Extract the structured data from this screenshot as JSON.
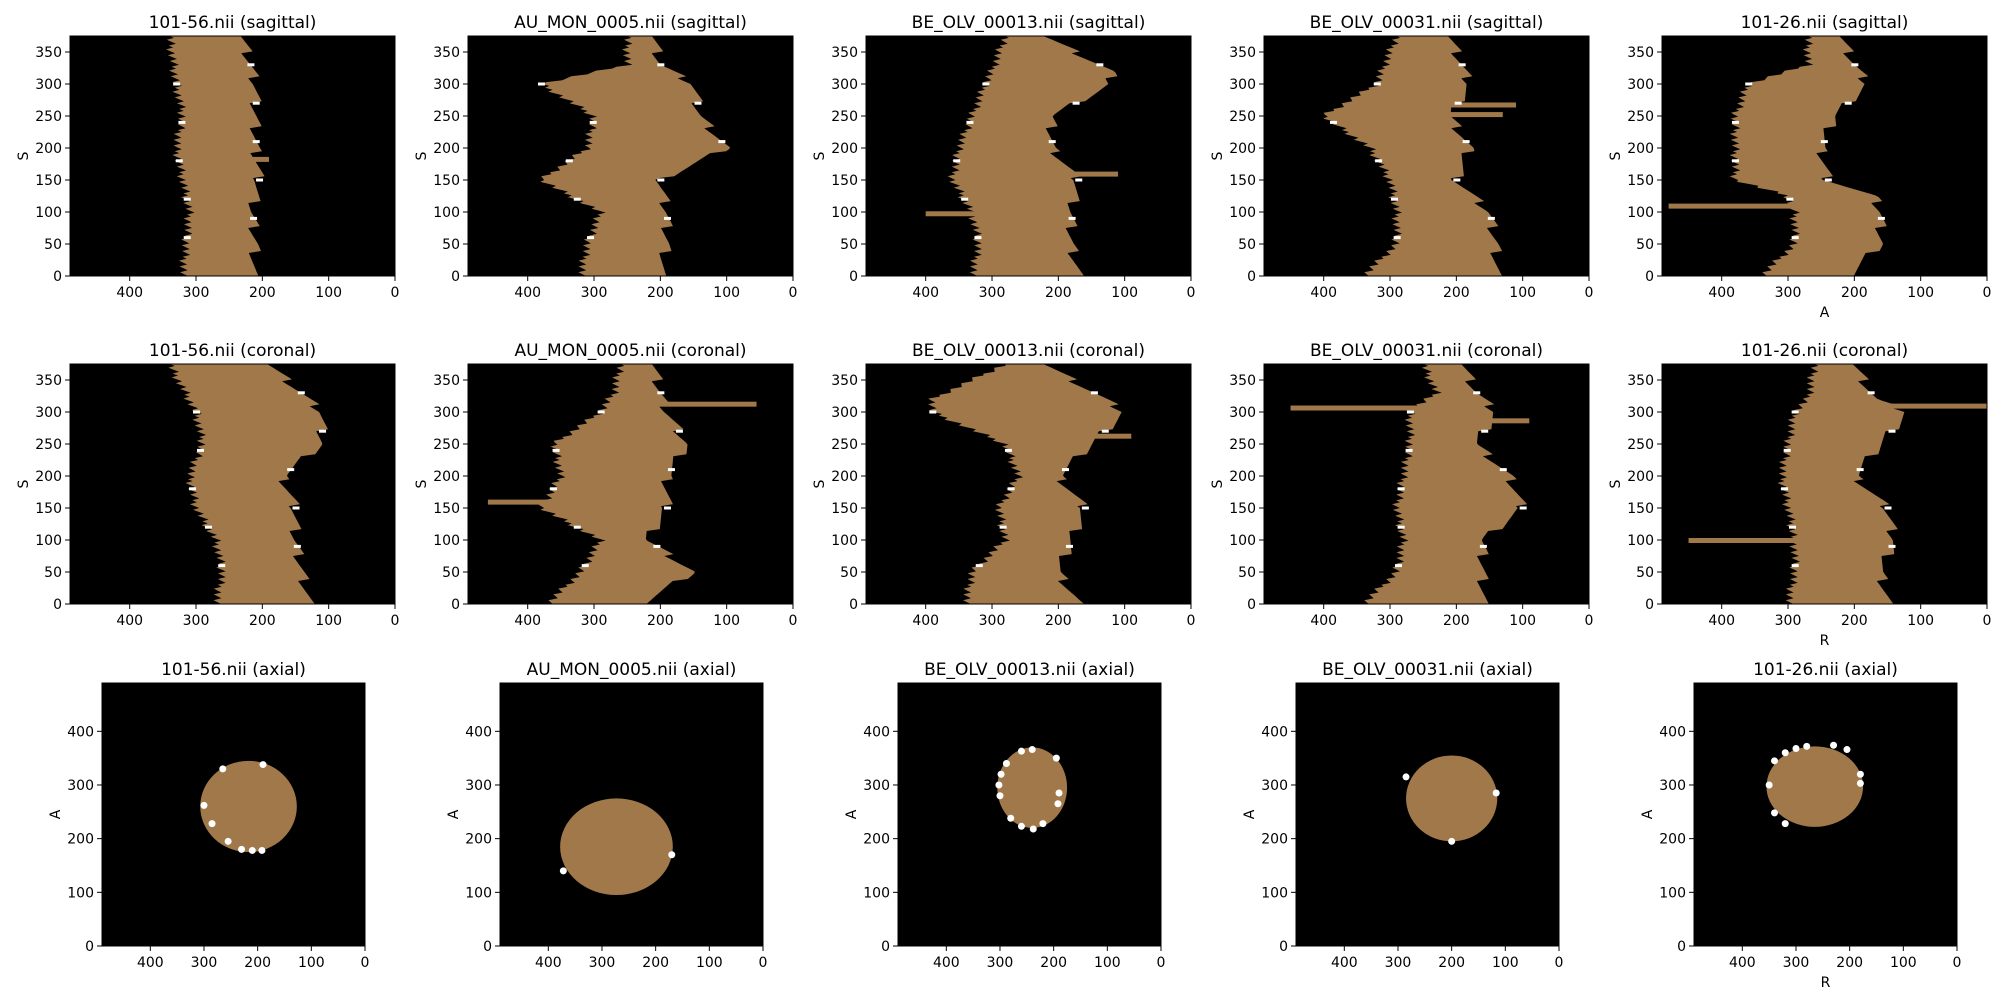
{
  "figure": {
    "background": "#ffffff",
    "tissue_color": "#a0784a",
    "volume_color": "#000000",
    "marker_color": "#ffffff"
  },
  "chart_data": [
    {
      "title": "101-56.nii (sagittal)",
      "type": "heatmap",
      "view": "sagittal",
      "xlabel": "",
      "ylabel": "S",
      "xlim": [
        490,
        0
      ],
      "ylim": [
        0,
        375
      ],
      "xticks": [
        400,
        300,
        200,
        100,
        0
      ],
      "yticks": [
        0,
        50,
        100,
        150,
        200,
        250,
        300,
        350
      ],
      "profile": {
        "s": [
          0,
          50,
          100,
          150,
          200,
          250,
          300,
          375
        ],
        "left": [
          320,
          315,
          310,
          320,
          330,
          320,
          330,
          340
        ],
        "right": [
          215,
          210,
          215,
          205,
          210,
          210,
          210,
          230
        ]
      },
      "spikes": [
        {
          "s": 183,
          "to": 190
        }
      ]
    },
    {
      "title": "AU_MON_0005.nii (sagittal)",
      "type": "heatmap",
      "view": "sagittal",
      "xlabel": "",
      "ylabel": "S",
      "xlim": [
        490,
        0
      ],
      "ylim": [
        0,
        375
      ],
      "xticks": [
        400,
        300,
        200,
        100,
        0
      ],
      "yticks": [
        0,
        50,
        100,
        150,
        200,
        250,
        300,
        350
      ],
      "profile": {
        "s": [
          0,
          50,
          100,
          150,
          200,
          250,
          300,
          330,
          375
        ],
        "left": [
          320,
          310,
          290,
          380,
          310,
          300,
          380,
          250,
          250
        ],
        "right": [
          200,
          190,
          190,
          200,
          100,
          140,
          150,
          200,
          210
        ]
      },
      "spikes": []
    },
    {
      "title": "BE_OLV_00013.nii (sagittal)",
      "type": "heatmap",
      "view": "sagittal",
      "xlabel": "",
      "ylabel": "S",
      "xlabel_visible": false,
      "xlim": [
        490,
        0
      ],
      "ylim": [
        0,
        375
      ],
      "xticks": [
        400,
        300,
        200,
        100,
        0
      ],
      "yticks": [
        0,
        50,
        100,
        150,
        200,
        250,
        300,
        350
      ],
      "profile": {
        "s": [
          0,
          50,
          100,
          150,
          200,
          250,
          300,
          320,
          375
        ],
        "left": [
          330,
          320,
          330,
          360,
          350,
          330,
          310,
          300,
          280
        ],
        "right": [
          170,
          180,
          180,
          170,
          210,
          210,
          120,
          120,
          220
        ]
      },
      "spikes": [
        {
          "s": 160,
          "to": 110
        },
        {
          "s": 98,
          "to": 400
        }
      ]
    },
    {
      "title": "BE_OLV_00031.nii (sagittal)",
      "type": "heatmap",
      "view": "sagittal",
      "xlabel": "",
      "ylabel": "S",
      "xlim": [
        490,
        0
      ],
      "ylim": [
        0,
        375
      ],
      "xticks": [
        400,
        300,
        200,
        100,
        0
      ],
      "yticks": [
        0,
        50,
        100,
        150,
        200,
        250,
        300,
        350
      ],
      "profile": {
        "s": [
          0,
          50,
          100,
          150,
          200,
          250,
          300,
          375
        ],
        "left": [
          340,
          290,
          290,
          300,
          330,
          400,
          320,
          290
        ],
        "right": [
          140,
          140,
          150,
          200,
          180,
          210,
          180,
          210
        ]
      },
      "spikes": [
        {
          "s": 268,
          "to": 110
        },
        {
          "s": 253,
          "to": 130
        }
      ]
    },
    {
      "title": "101-26.nii (sagittal)",
      "type": "heatmap",
      "view": "sagittal",
      "xlabel": "A",
      "ylabel": "S",
      "xlim": [
        490,
        0
      ],
      "ylim": [
        0,
        375
      ],
      "xticks": [
        400,
        300,
        200,
        100,
        0
      ],
      "yticks": [
        0,
        50,
        100,
        150,
        200,
        250,
        300,
        350
      ],
      "profile": {
        "s": [
          0,
          50,
          100,
          125,
          150,
          200,
          250,
          300,
          330,
          375
        ],
        "left": [
          340,
          290,
          290,
          300,
          380,
          380,
          380,
          360,
          270,
          270
        ],
        "right": [
          210,
          160,
          160,
          170,
          240,
          250,
          230,
          180,
          200,
          220
        ]
      },
      "spikes": [
        {
          "s": 110,
          "to": 480
        }
      ]
    },
    {
      "title": "101-56.nii (coronal)",
      "type": "heatmap",
      "view": "coronal",
      "xlabel": "",
      "ylabel": "S",
      "xlim": [
        490,
        0
      ],
      "ylim": [
        0,
        375
      ],
      "xticks": [
        400,
        300,
        200,
        100,
        0
      ],
      "yticks": [
        0,
        50,
        100,
        150,
        200,
        250,
        300,
        350
      ],
      "profile": {
        "s": [
          0,
          50,
          100,
          150,
          200,
          250,
          300,
          375
        ],
        "left": [
          270,
          260,
          270,
          300,
          310,
          290,
          300,
          340
        ],
        "right": [
          130,
          140,
          150,
          150,
          170,
          110,
          110,
          190
        ]
      },
      "spikes": []
    },
    {
      "title": "AU_MON_0005.nii (coronal)",
      "type": "heatmap",
      "view": "coronal",
      "xlabel": "",
      "ylabel": "S",
      "xlim": [
        490,
        0
      ],
      "ylim": [
        0,
        375
      ],
      "xticks": [
        400,
        300,
        200,
        100,
        0
      ],
      "yticks": [
        0,
        50,
        100,
        150,
        200,
        250,
        300,
        350
      ],
      "profile": {
        "s": [
          0,
          50,
          100,
          150,
          200,
          250,
          300,
          330,
          375
        ],
        "left": [
          370,
          320,
          290,
          380,
          350,
          360,
          290,
          270,
          260
        ],
        "right": [
          230,
          150,
          220,
          190,
          190,
          160,
          190,
          200,
          210
        ]
      },
      "spikes": [
        {
          "s": 160,
          "to": 460
        },
        {
          "s": 313,
          "to": 55
        }
      ]
    },
    {
      "title": "BE_OLV_00013.nii (coronal)",
      "type": "heatmap",
      "view": "coronal",
      "xlabel": "",
      "ylabel": "S",
      "xlim": [
        490,
        0
      ],
      "ylim": [
        0,
        375
      ],
      "xticks": [
        400,
        300,
        200,
        100,
        0
      ],
      "yticks": [
        0,
        50,
        100,
        150,
        200,
        250,
        300,
        350
      ],
      "profile": {
        "s": [
          0,
          50,
          100,
          150,
          200,
          250,
          300,
          320,
          375
        ],
        "left": [
          340,
          330,
          280,
          290,
          260,
          280,
          390,
          390,
          280
        ],
        "right": [
          170,
          200,
          180,
          160,
          200,
          150,
          100,
          130,
          220
        ]
      },
      "spikes": [
        {
          "s": 263,
          "to": 90
        }
      ]
    },
    {
      "title": "BE_OLV_00031.nii (coronal)",
      "type": "heatmap",
      "view": "coronal",
      "xlabel": "",
      "ylabel": "S",
      "xlim": [
        490,
        0
      ],
      "ylim": [
        0,
        375
      ],
      "xticks": [
        400,
        300,
        200,
        100,
        0
      ],
      "yticks": [
        0,
        50,
        100,
        150,
        200,
        250,
        300,
        350
      ],
      "profile": {
        "s": [
          0,
          50,
          100,
          150,
          200,
          250,
          300,
          330,
          375
        ],
        "left": [
          340,
          290,
          280,
          290,
          280,
          270,
          270,
          230,
          250
        ],
        "right": [
          160,
          160,
          160,
          100,
          120,
          170,
          140,
          170,
          190
        ]
      },
      "spikes": [
        {
          "s": 307,
          "to": 450
        },
        {
          "s": 287,
          "to": 90
        }
      ]
    },
    {
      "title": "101-26.nii (coronal)",
      "type": "heatmap",
      "view": "coronal",
      "xlabel": "R",
      "ylabel": "S",
      "xlim": [
        490,
        0
      ],
      "ylim": [
        0,
        375
      ],
      "xticks": [
        400,
        300,
        200,
        100,
        0
      ],
      "yticks": [
        0,
        50,
        100,
        150,
        200,
        250,
        300,
        350
      ],
      "profile": {
        "s": [
          0,
          50,
          100,
          150,
          200,
          250,
          300,
          320,
          375
        ],
        "left": [
          300,
          290,
          290,
          300,
          310,
          300,
          290,
          270,
          260
        ],
        "right": [
          150,
          160,
          140,
          150,
          200,
          160,
          120,
          170,
          200
        ]
      },
      "spikes": [
        {
          "s": 310,
          "to": 0
        },
        {
          "s": 100,
          "to": 450
        }
      ]
    },
    {
      "title": "101-56.nii (axial)",
      "type": "heatmap",
      "view": "axial",
      "xlabel": "",
      "ylabel": "A",
      "xlim": [
        490,
        0
      ],
      "ylim": [
        0,
        490
      ],
      "xticks": [
        400,
        300,
        200,
        100,
        0
      ],
      "yticks": [
        0,
        100,
        200,
        300,
        400
      ],
      "blob": {
        "cx": 217,
        "cy": 260,
        "rx": 90,
        "ry": 85
      },
      "markers": [
        [
          265,
          330
        ],
        [
          190,
          338
        ],
        [
          300,
          262
        ],
        [
          285,
          228
        ],
        [
          255,
          195
        ],
        [
          230,
          180
        ],
        [
          210,
          178
        ],
        [
          192,
          178
        ]
      ]
    },
    {
      "title": "AU_MON_0005.nii (axial)",
      "type": "heatmap",
      "view": "axial",
      "xlabel": "",
      "ylabel": "A",
      "xlim": [
        490,
        0
      ],
      "ylim": [
        0,
        490
      ],
      "xticks": [
        400,
        300,
        200,
        100,
        0
      ],
      "yticks": [
        0,
        100,
        200,
        300,
        400
      ],
      "blob": {
        "cx": 273,
        "cy": 185,
        "rx": 105,
        "ry": 90
      },
      "markers": [
        [
          372,
          140
        ],
        [
          170,
          170
        ]
      ]
    },
    {
      "title": "BE_OLV_00013.nii (axial)",
      "type": "heatmap",
      "view": "axial",
      "xlabel": "",
      "ylabel": "A",
      "xlim": [
        490,
        0
      ],
      "ylim": [
        0,
        490
      ],
      "xticks": [
        400,
        300,
        200,
        100,
        0
      ],
      "yticks": [
        0,
        100,
        200,
        300,
        400
      ],
      "blob": {
        "cx": 240,
        "cy": 295,
        "rx": 65,
        "ry": 75
      },
      "markers": [
        [
          260,
          363
        ],
        [
          240,
          366
        ],
        [
          195,
          350
        ],
        [
          288,
          340
        ],
        [
          298,
          320
        ],
        [
          302,
          300
        ],
        [
          300,
          280
        ],
        [
          190,
          285
        ],
        [
          192,
          265
        ],
        [
          280,
          238
        ],
        [
          260,
          223
        ],
        [
          238,
          218
        ],
        [
          220,
          228
        ]
      ]
    },
    {
      "title": "BE_OLV_00031.nii (axial)",
      "type": "heatmap",
      "view": "axial",
      "xlabel": "",
      "ylabel": "A",
      "xlim": [
        490,
        0
      ],
      "ylim": [
        0,
        490
      ],
      "xticks": [
        400,
        300,
        200,
        100,
        0
      ],
      "yticks": [
        0,
        100,
        200,
        300,
        400
      ],
      "blob": {
        "cx": 200,
        "cy": 275,
        "rx": 85,
        "ry": 80
      },
      "markers": [
        [
          285,
          315
        ],
        [
          117,
          285
        ],
        [
          200,
          195
        ]
      ]
    },
    {
      "title": "101-26.nii (axial)",
      "type": "heatmap",
      "view": "axial",
      "xlabel": "R",
      "ylabel": "A",
      "xlim": [
        490,
        0
      ],
      "ylim": [
        0,
        490
      ],
      "xticks": [
        400,
        300,
        200,
        100,
        0
      ],
      "yticks": [
        0,
        100,
        200,
        300,
        400
      ],
      "blob": {
        "cx": 265,
        "cy": 297,
        "rx": 90,
        "ry": 75
      },
      "markers": [
        [
          340,
          345
        ],
        [
          320,
          360
        ],
        [
          300,
          368
        ],
        [
          280,
          372
        ],
        [
          230,
          374
        ],
        [
          205,
          366
        ],
        [
          180,
          320
        ],
        [
          180,
          303
        ],
        [
          350,
          300
        ],
        [
          340,
          248
        ],
        [
          320,
          228
        ]
      ]
    }
  ]
}
